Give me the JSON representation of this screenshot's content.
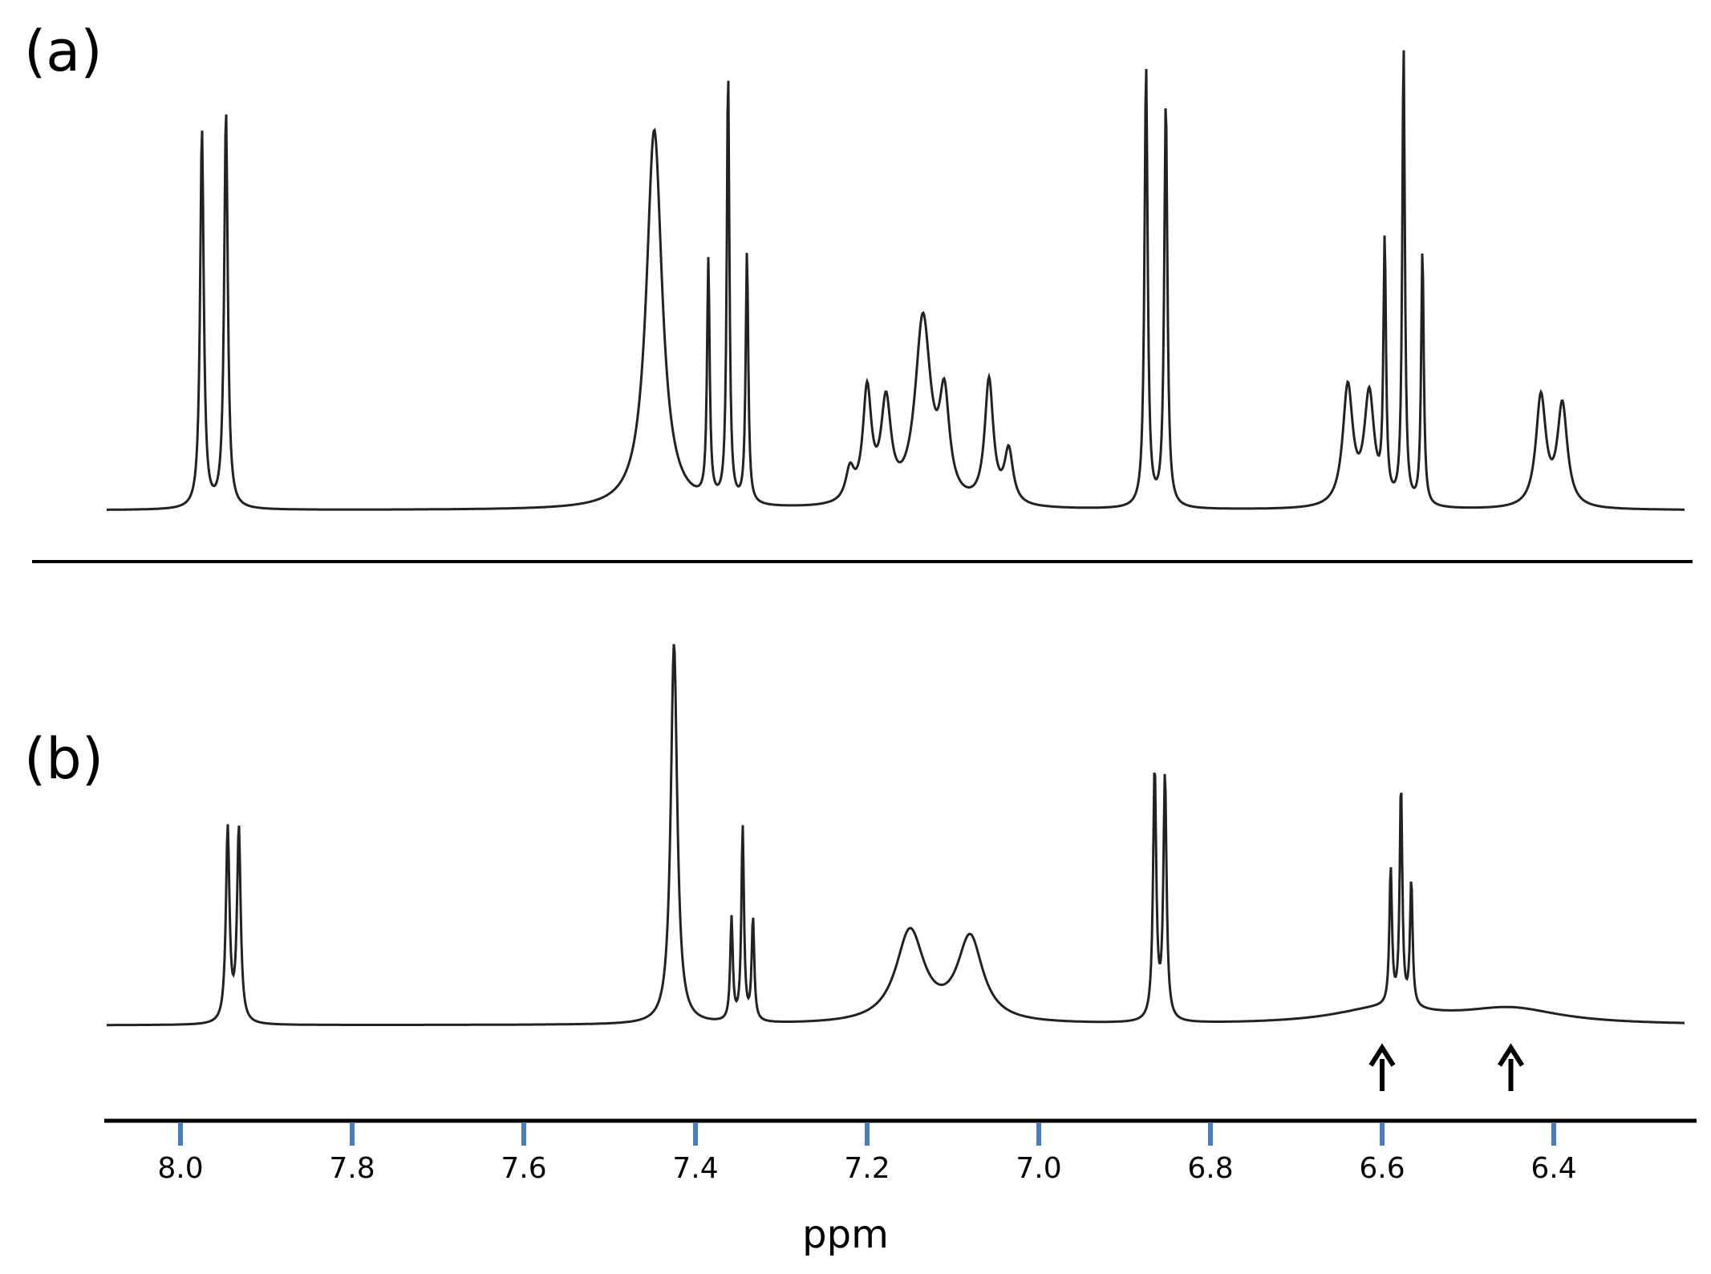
{
  "chart_data": {
    "type": "line",
    "xlabel": "ppm",
    "x_ticks": [
      8.0,
      7.8,
      7.6,
      7.4,
      7.2,
      7.0,
      6.8,
      6.6,
      6.4
    ],
    "x_tick_labels": [
      "8.0",
      "7.8",
      "7.6",
      "7.4",
      "7.2",
      "7.0",
      "6.8",
      "6.6",
      "6.4"
    ],
    "xlim": [
      8.09,
      6.25
    ],
    "reversed_x": true,
    "tick_color": "#4a7ebb",
    "line_color": "#222222",
    "panels": [
      {
        "label": "(a)",
        "peaks": [
          {
            "ppm": 7.975,
            "height": 0.86,
            "width": 0.0025
          },
          {
            "ppm": 7.947,
            "height": 0.9,
            "width": 0.0025
          },
          {
            "ppm": 7.448,
            "height": 0.86,
            "width": 0.011
          },
          {
            "ppm": 7.385,
            "height": 0.54,
            "width": 0.0018
          },
          {
            "ppm": 7.362,
            "height": 0.98,
            "width": 0.0018
          },
          {
            "ppm": 7.34,
            "height": 0.57,
            "width": 0.0018
          },
          {
            "ppm": 7.22,
            "height": 0.07,
            "width": 0.006
          },
          {
            "ppm": 7.2,
            "height": 0.25,
            "width": 0.006
          },
          {
            "ppm": 7.178,
            "height": 0.22,
            "width": 0.007
          },
          {
            "ppm": 7.135,
            "height": 0.42,
            "width": 0.011
          },
          {
            "ppm": 7.11,
            "height": 0.22,
            "width": 0.007
          },
          {
            "ppm": 7.058,
            "height": 0.28,
            "width": 0.006
          },
          {
            "ppm": 7.035,
            "height": 0.12,
            "width": 0.006
          },
          {
            "ppm": 6.875,
            "height": 1.0,
            "width": 0.0022
          },
          {
            "ppm": 6.852,
            "height": 0.92,
            "width": 0.0022
          },
          {
            "ppm": 6.64,
            "height": 0.27,
            "width": 0.007
          },
          {
            "ppm": 6.615,
            "height": 0.25,
            "width": 0.007
          },
          {
            "ppm": 6.597,
            "height": 0.58,
            "width": 0.0018
          },
          {
            "ppm": 6.575,
            "height": 1.04,
            "width": 0.0018
          },
          {
            "ppm": 6.553,
            "height": 0.58,
            "width": 0.0018
          },
          {
            "ppm": 6.415,
            "height": 0.25,
            "width": 0.007
          },
          {
            "ppm": 6.39,
            "height": 0.23,
            "width": 0.007
          }
        ]
      },
      {
        "label": "(b)",
        "peaks": [
          {
            "ppm": 7.945,
            "height": 0.51,
            "width": 0.0025
          },
          {
            "ppm": 7.932,
            "height": 0.51,
            "width": 0.0025
          },
          {
            "ppm": 7.425,
            "height": 1.0,
            "width": 0.0045
          },
          {
            "ppm": 7.358,
            "height": 0.27,
            "width": 0.0018
          },
          {
            "ppm": 7.345,
            "height": 0.51,
            "width": 0.0018
          },
          {
            "ppm": 7.333,
            "height": 0.27,
            "width": 0.0018
          },
          {
            "ppm": 7.15,
            "height": 0.24,
            "width": 0.02
          },
          {
            "ppm": 7.08,
            "height": 0.22,
            "width": 0.018
          },
          {
            "ppm": 6.865,
            "height": 0.66,
            "width": 0.0022
          },
          {
            "ppm": 6.853,
            "height": 0.64,
            "width": 0.0022
          },
          {
            "ppm": 6.59,
            "height": 0.36,
            "width": 0.0018
          },
          {
            "ppm": 6.578,
            "height": 0.58,
            "width": 0.0018
          },
          {
            "ppm": 6.566,
            "height": 0.33,
            "width": 0.0018
          },
          {
            "ppm": 6.6,
            "height": 0.04,
            "width": 0.07
          },
          {
            "ppm": 6.45,
            "height": 0.04,
            "width": 0.07
          }
        ],
        "arrows_ppm": [
          6.6,
          6.45
        ]
      }
    ]
  }
}
